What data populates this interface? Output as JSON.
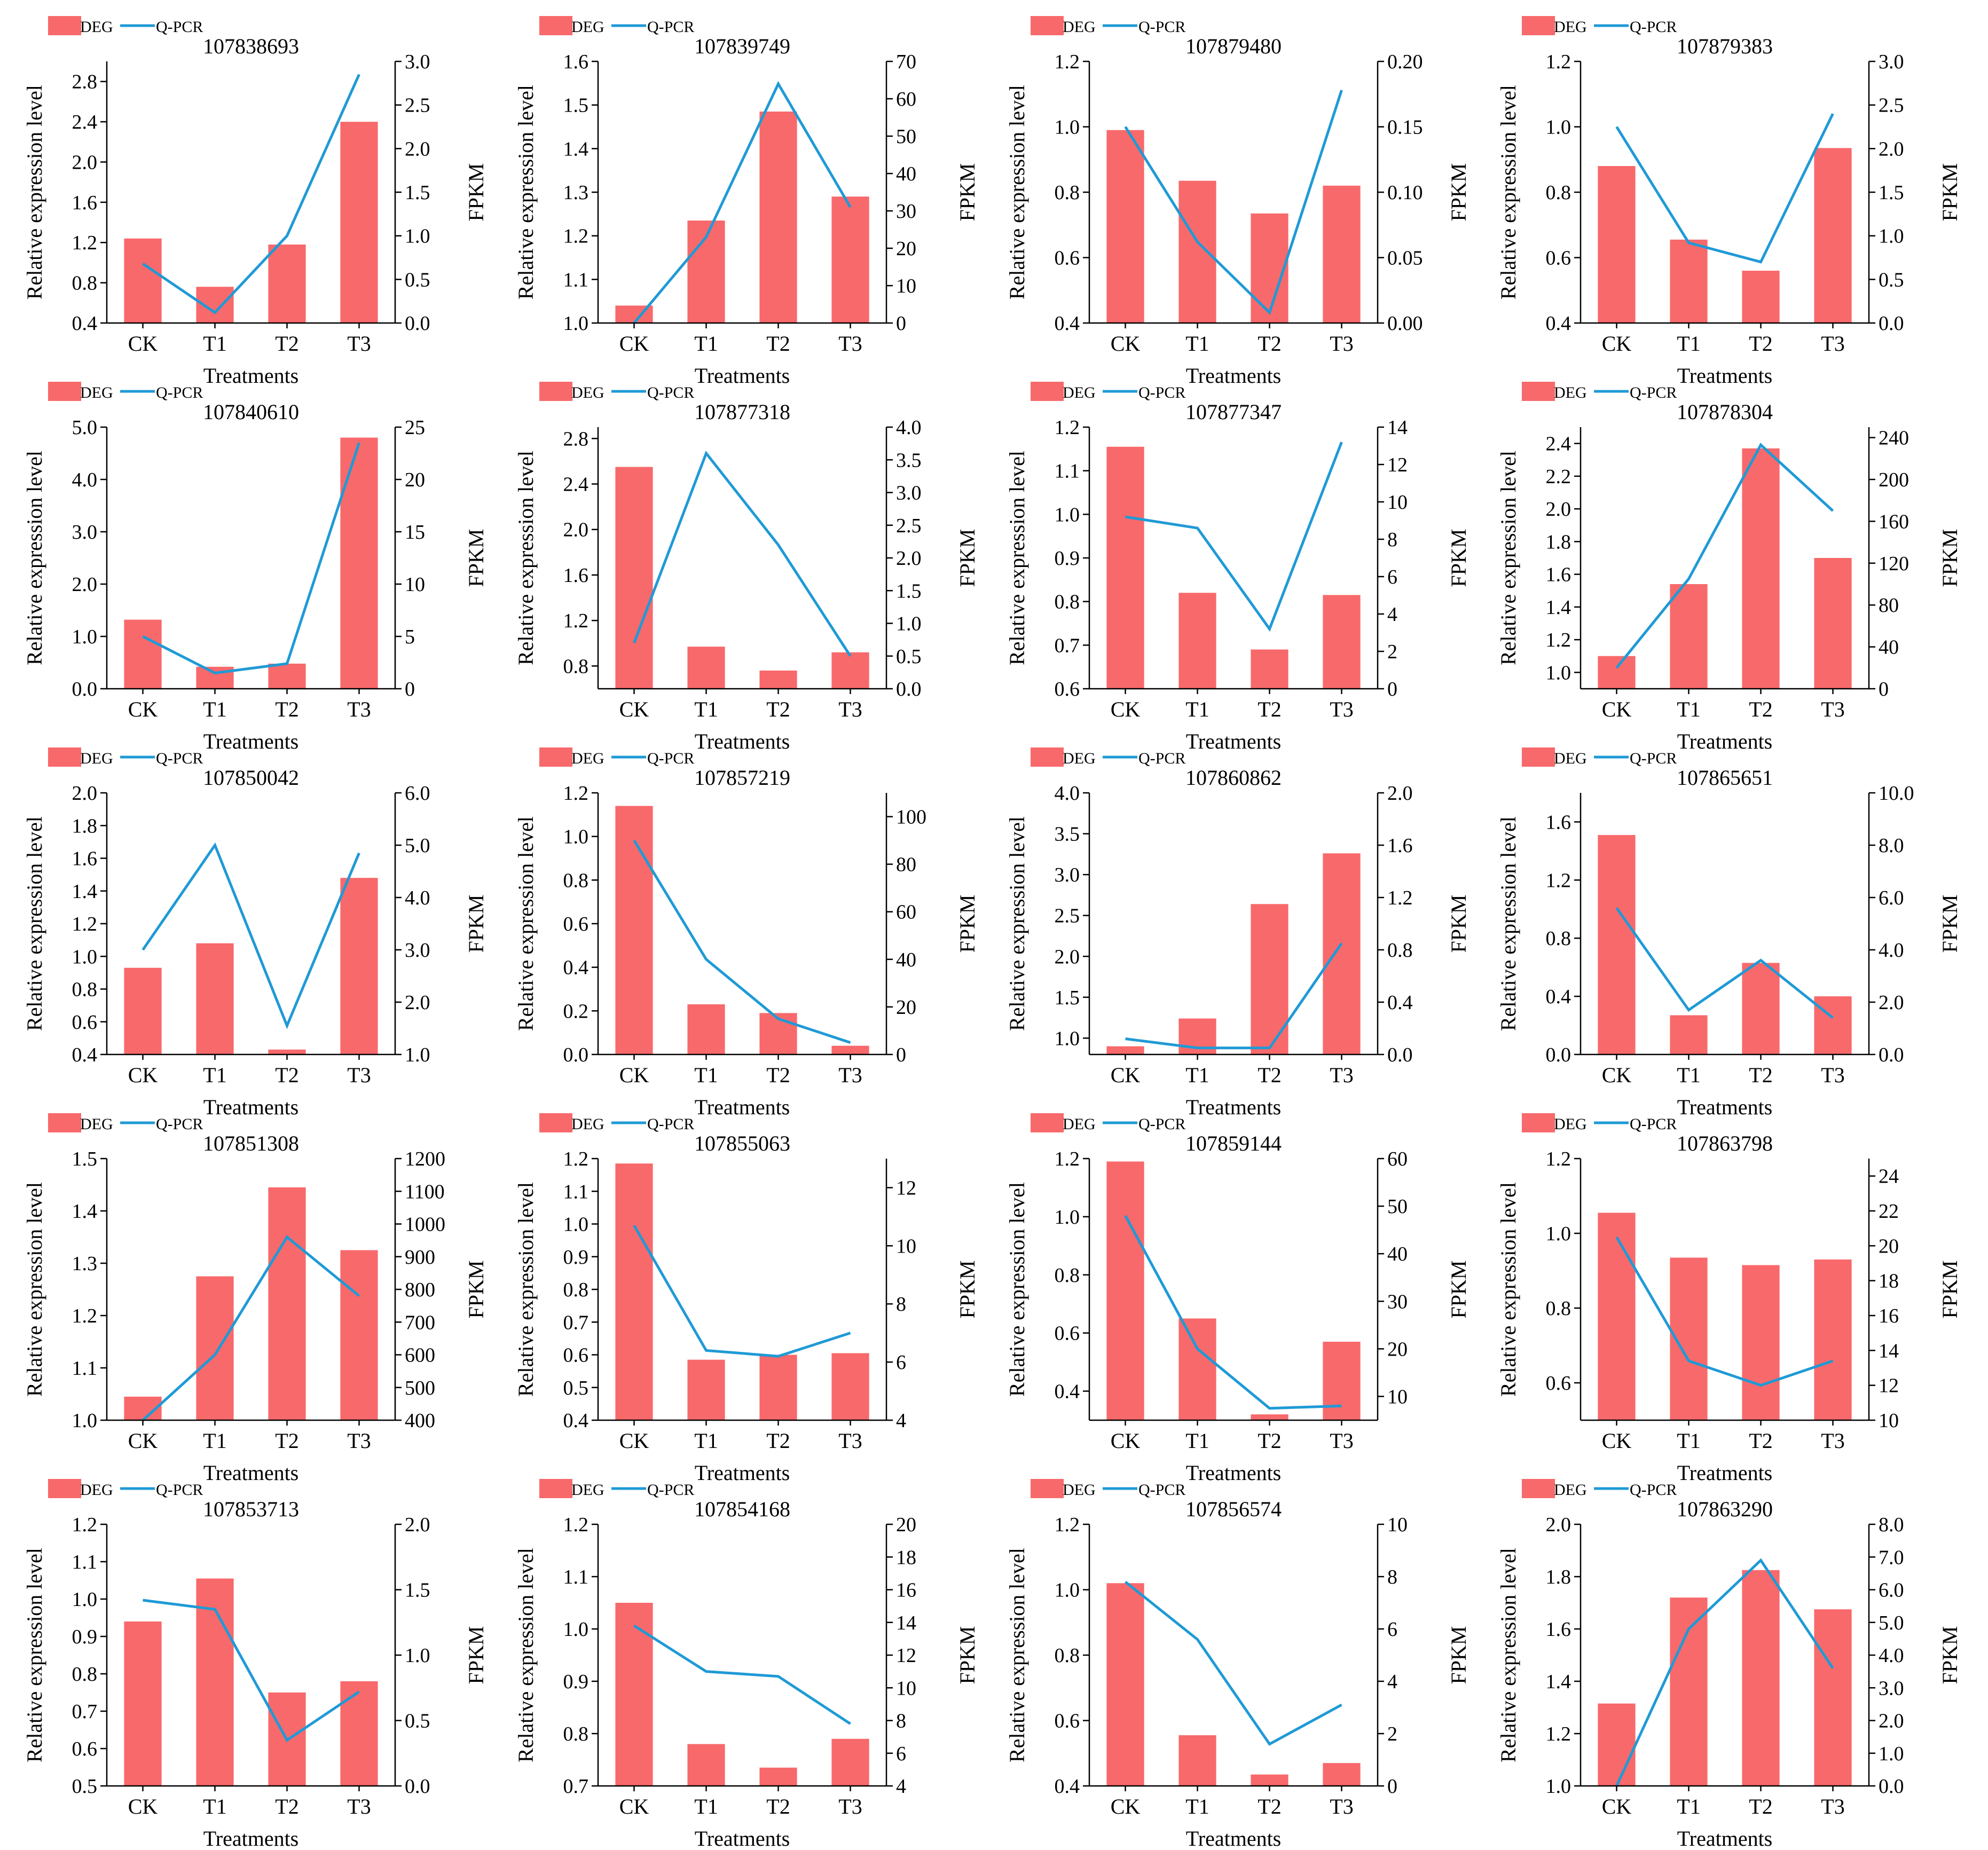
{
  "colors": {
    "bar": "#f8696b",
    "line": "#1f9ad6",
    "axis": "#000000"
  },
  "chart_data": [
    {
      "type": "bar+line",
      "title": "107838693",
      "categories": [
        "CK",
        "T1",
        "T2",
        "T3"
      ],
      "series": [
        {
          "name": "DEG",
          "axis": "left",
          "values": [
            1.24,
            0.76,
            1.18,
            2.4
          ]
        },
        {
          "name": "Q-PCR",
          "axis": "right",
          "values": [
            0.68,
            0.12,
            1.0,
            2.85
          ]
        }
      ],
      "xlabel": "Treatments",
      "ylabel": "Relative expression level",
      "y2label": "FPKM",
      "ylim": [
        0.4,
        3.0
      ],
      "yticks": [
        "0.4",
        "0.8",
        "1.2",
        "1.6",
        "2.0",
        "2.4",
        "2.8"
      ],
      "y2lim": [
        0,
        3
      ],
      "y2ticks": [
        "0.0",
        "0.5",
        "1.0",
        "1.5",
        "2.0",
        "2.5",
        "3.0"
      ]
    },
    {
      "type": "bar+line",
      "title": "107839749",
      "categories": [
        "CK",
        "T1",
        "T2",
        "T3"
      ],
      "series": [
        {
          "name": "DEG",
          "axis": "left",
          "values": [
            1.04,
            1.235,
            1.485,
            1.29
          ]
        },
        {
          "name": "Q-PCR",
          "axis": "right",
          "values": [
            0,
            23,
            64,
            31
          ]
        }
      ],
      "xlabel": "Treatments",
      "ylabel": "Relative expression level",
      "y2label": "FPKM",
      "ylim": [
        1.0,
        1.6
      ],
      "yticks": [
        "1.0",
        "1.1",
        "1.2",
        "1.3",
        "1.4",
        "1.5",
        "1.6"
      ],
      "y2lim": [
        0,
        70
      ],
      "y2ticks": [
        "0",
        "10",
        "20",
        "30",
        "40",
        "50",
        "60",
        "70"
      ]
    },
    {
      "type": "bar+line",
      "title": "107879480",
      "categories": [
        "CK",
        "T1",
        "T2",
        "T3"
      ],
      "series": [
        {
          "name": "DEG",
          "axis": "left",
          "values": [
            0.99,
            0.835,
            0.735,
            0.82
          ]
        },
        {
          "name": "Q-PCR",
          "axis": "right",
          "values": [
            0.15,
            0.062,
            0.008,
            0.178
          ]
        }
      ],
      "xlabel": "Treatments",
      "ylabel": "Relative expression level",
      "y2label": "FPKM",
      "ylim": [
        0.4,
        1.2
      ],
      "yticks": [
        "0.4",
        "0.6",
        "0.8",
        "1.0",
        "1.2"
      ],
      "y2lim": [
        0,
        0.2
      ],
      "y2ticks": [
        "0.00",
        "0.05",
        "0.10",
        "0.15",
        "0.20"
      ]
    },
    {
      "type": "bar+line",
      "title": "107879383",
      "categories": [
        "CK",
        "T1",
        "T2",
        "T3"
      ],
      "series": [
        {
          "name": "DEG",
          "axis": "left",
          "values": [
            0.88,
            0.655,
            0.56,
            0.935
          ]
        },
        {
          "name": "Q-PCR",
          "axis": "right",
          "values": [
            2.25,
            0.92,
            0.7,
            2.4
          ]
        }
      ],
      "xlabel": "Treatments",
      "ylabel": "Relative expression level",
      "y2label": "FPKM",
      "ylim": [
        0.4,
        1.2
      ],
      "yticks": [
        "0.4",
        "0.6",
        "0.8",
        "1.0",
        "1.2"
      ],
      "y2lim": [
        0,
        3
      ],
      "y2ticks": [
        "0.0",
        "0.5",
        "1.0",
        "1.5",
        "2.0",
        "2.5",
        "3.0"
      ]
    },
    {
      "type": "bar+line",
      "title": "107840610",
      "categories": [
        "CK",
        "T1",
        "T2",
        "T3"
      ],
      "series": [
        {
          "name": "DEG",
          "axis": "left",
          "values": [
            1.32,
            0.42,
            0.48,
            4.8
          ]
        },
        {
          "name": "Q-PCR",
          "axis": "right",
          "values": [
            5,
            1.5,
            2.4,
            23.5
          ]
        }
      ],
      "xlabel": "Treatments",
      "ylabel": "Relative expression level",
      "y2label": "FPKM",
      "ylim": [
        0,
        5
      ],
      "yticks": [
        "0.0",
        "1.0",
        "2.0",
        "3.0",
        "4.0",
        "5.0"
      ],
      "y2lim": [
        0,
        25
      ],
      "y2ticks": [
        "0",
        "5",
        "10",
        "15",
        "20",
        "25"
      ]
    },
    {
      "type": "bar+line",
      "title": "107877318",
      "categories": [
        "CK",
        "T1",
        "T2",
        "T3"
      ],
      "series": [
        {
          "name": "DEG",
          "axis": "left",
          "values": [
            2.55,
            0.97,
            0.76,
            0.92
          ]
        },
        {
          "name": "Q-PCR",
          "axis": "right",
          "values": [
            0.7,
            3.6,
            2.2,
            0.5
          ]
        }
      ],
      "xlabel": "Treatments",
      "ylabel": "Relative expression level",
      "y2label": "FPKM",
      "ylim": [
        0.6,
        2.9
      ],
      "yticks": [
        "0.8",
        "1.2",
        "1.6",
        "2.0",
        "2.4",
        "2.8"
      ],
      "y2lim": [
        0,
        4
      ],
      "y2ticks": [
        "0.0",
        "0.5",
        "1.0",
        "1.5",
        "2.0",
        "2.5",
        "3.0",
        "3.5",
        "4.0"
      ]
    },
    {
      "type": "bar+line",
      "title": "107877347",
      "categories": [
        "CK",
        "T1",
        "T2",
        "T3"
      ],
      "series": [
        {
          "name": "DEG",
          "axis": "left",
          "values": [
            1.155,
            0.82,
            0.69,
            0.815
          ]
        },
        {
          "name": "Q-PCR",
          "axis": "right",
          "values": [
            9.2,
            8.6,
            3.2,
            13.2
          ]
        }
      ],
      "xlabel": "Treatments",
      "ylabel": "Relative expression level",
      "y2label": "FPKM",
      "ylim": [
        0.6,
        1.2
      ],
      "yticks": [
        "0.6",
        "0.7",
        "0.8",
        "0.9",
        "1.0",
        "1.1",
        "1.2"
      ],
      "y2lim": [
        0,
        14
      ],
      "y2ticks": [
        "0",
        "2",
        "4",
        "6",
        "8",
        "10",
        "12",
        "14"
      ]
    },
    {
      "type": "bar+line",
      "title": "107878304",
      "categories": [
        "CK",
        "T1",
        "T2",
        "T3"
      ],
      "series": [
        {
          "name": "DEG",
          "axis": "left",
          "values": [
            1.1,
            1.54,
            2.37,
            1.7
          ]
        },
        {
          "name": "Q-PCR",
          "axis": "right",
          "values": [
            20,
            105,
            233,
            170
          ]
        }
      ],
      "xlabel": "Treatments",
      "ylabel": "Relative expression level",
      "y2label": "FPKM",
      "ylim": [
        0.9,
        2.5
      ],
      "yticks": [
        "1.0",
        "1.2",
        "1.4",
        "1.6",
        "1.8",
        "2.0",
        "2.2",
        "2.4"
      ],
      "y2lim": [
        0,
        250
      ],
      "y2ticks": [
        "0",
        "40",
        "80",
        "120",
        "160",
        "200",
        "240"
      ]
    },
    {
      "type": "bar+line",
      "title": "107850042",
      "categories": [
        "CK",
        "T1",
        "T2",
        "T3"
      ],
      "series": [
        {
          "name": "DEG",
          "axis": "left",
          "values": [
            0.93,
            1.08,
            0.43,
            1.48
          ]
        },
        {
          "name": "Q-PCR",
          "axis": "right",
          "values": [
            3.0,
            5.0,
            1.55,
            4.85
          ]
        }
      ],
      "xlabel": "Treatments",
      "ylabel": "Relative expression level",
      "y2label": "FPKM",
      "ylim": [
        0.4,
        2.0
      ],
      "yticks": [
        "0.4",
        "0.6",
        "0.8",
        "1.0",
        "1.2",
        "1.4",
        "1.6",
        "1.8",
        "2.0"
      ],
      "y2lim": [
        1,
        6
      ],
      "y2ticks": [
        "1.0",
        "2.0",
        "3.0",
        "4.0",
        "5.0",
        "6.0"
      ]
    },
    {
      "type": "bar+line",
      "title": "107857219",
      "categories": [
        "CK",
        "T1",
        "T2",
        "T3"
      ],
      "series": [
        {
          "name": "DEG",
          "axis": "left",
          "values": [
            1.14,
            0.23,
            0.19,
            0.04
          ]
        },
        {
          "name": "Q-PCR",
          "axis": "right",
          "values": [
            90,
            40,
            15,
            5
          ]
        }
      ],
      "xlabel": "Treatments",
      "ylabel": "Relative expression level",
      "y2label": "FPKM",
      "ylim": [
        0,
        1.2
      ],
      "yticks": [
        "0.0",
        "0.2",
        "0.4",
        "0.6",
        "0.8",
        "1.0",
        "1.2"
      ],
      "y2lim": [
        0,
        110
      ],
      "y2ticks": [
        "0",
        "20",
        "40",
        "60",
        "80",
        "100"
      ]
    },
    {
      "type": "bar+line",
      "title": "107860862",
      "categories": [
        "CK",
        "T1",
        "T2",
        "T3"
      ],
      "series": [
        {
          "name": "DEG",
          "axis": "left",
          "values": [
            0.9,
            1.24,
            2.64,
            3.26
          ]
        },
        {
          "name": "Q-PCR",
          "axis": "right",
          "values": [
            0.12,
            0.05,
            0.05,
            0.85
          ]
        }
      ],
      "xlabel": "Treatments",
      "ylabel": "Relative expression level",
      "y2label": "FPKM",
      "ylim": [
        0.8,
        4.0
      ],
      "yticks": [
        "1.0",
        "1.5",
        "2.0",
        "2.5",
        "3.0",
        "3.5",
        "4.0"
      ],
      "y2lim": [
        0,
        2
      ],
      "y2ticks": [
        "0.0",
        "0.4",
        "0.8",
        "1.2",
        "1.6",
        "2.0"
      ]
    },
    {
      "type": "bar+line",
      "title": "107865651",
      "categories": [
        "CK",
        "T1",
        "T2",
        "T3"
      ],
      "series": [
        {
          "name": "DEG",
          "axis": "left",
          "values": [
            1.51,
            0.27,
            0.63,
            0.4
          ]
        },
        {
          "name": "Q-PCR",
          "axis": "right",
          "values": [
            5.6,
            1.7,
            3.6,
            1.4
          ]
        }
      ],
      "xlabel": "Treatments",
      "ylabel": "Relative expression level",
      "y2label": "FPKM",
      "ylim": [
        0,
        1.8
      ],
      "yticks": [
        "0.0",
        "0.4",
        "0.8",
        "1.2",
        "1.6"
      ],
      "y2lim": [
        0,
        10
      ],
      "y2ticks": [
        "0.0",
        "2.0",
        "4.0",
        "6.0",
        "8.0",
        "10.0"
      ]
    },
    {
      "type": "bar+line",
      "title": "107851308",
      "categories": [
        "CK",
        "T1",
        "T2",
        "T3"
      ],
      "series": [
        {
          "name": "DEG",
          "axis": "left",
          "values": [
            1.045,
            1.275,
            1.445,
            1.325
          ]
        },
        {
          "name": "Q-PCR",
          "axis": "right",
          "values": [
            400,
            600,
            960,
            780
          ]
        }
      ],
      "xlabel": "Treatments",
      "ylabel": "Relative expression level",
      "y2label": "FPKM",
      "ylim": [
        1.0,
        1.5
      ],
      "yticks": [
        "1.0",
        "1.1",
        "1.2",
        "1.3",
        "1.4",
        "1.5"
      ],
      "y2lim": [
        400,
        1200
      ],
      "y2ticks": [
        "400",
        "500",
        "600",
        "700",
        "800",
        "900",
        "1000",
        "1100",
        "1200"
      ]
    },
    {
      "type": "bar+line",
      "title": "107855063",
      "categories": [
        "CK",
        "T1",
        "T2",
        "T3"
      ],
      "series": [
        {
          "name": "DEG",
          "axis": "left",
          "values": [
            1.185,
            0.585,
            0.6,
            0.605
          ]
        },
        {
          "name": "Q-PCR",
          "axis": "right",
          "values": [
            10.7,
            6.4,
            6.2,
            7.0
          ]
        }
      ],
      "xlabel": "Treatments",
      "ylabel": "Relative expression level",
      "y2label": "FPKM",
      "ylim": [
        0.4,
        1.2
      ],
      "yticks": [
        "0.4",
        "0.5",
        "0.6",
        "0.7",
        "0.8",
        "0.9",
        "1.0",
        "1.1",
        "1.2"
      ],
      "y2lim": [
        4,
        13
      ],
      "y2ticks": [
        "4",
        "6",
        "8",
        "10",
        "12"
      ]
    },
    {
      "type": "bar+line",
      "title": "107859144",
      "categories": [
        "CK",
        "T1",
        "T2",
        "T3"
      ],
      "series": [
        {
          "name": "DEG",
          "axis": "left",
          "values": [
            1.19,
            0.65,
            0.32,
            0.57
          ]
        },
        {
          "name": "Q-PCR",
          "axis": "right",
          "values": [
            48,
            20,
            7.5,
            8
          ]
        }
      ],
      "xlabel": "Treatments",
      "ylabel": "Relative expression level",
      "y2label": "FPKM",
      "ylim": [
        0.3,
        1.2
      ],
      "yticks": [
        "0.4",
        "0.6",
        "0.8",
        "1.0",
        "1.2"
      ],
      "y2lim": [
        5,
        60
      ],
      "y2ticks": [
        "10",
        "20",
        "30",
        "40",
        "50",
        "60"
      ]
    },
    {
      "type": "bar+line",
      "title": "107863798",
      "categories": [
        "CK",
        "T1",
        "T2",
        "T3"
      ],
      "series": [
        {
          "name": "DEG",
          "axis": "left",
          "values": [
            1.055,
            0.935,
            0.915,
            0.93
          ]
        },
        {
          "name": "Q-PCR",
          "axis": "right",
          "values": [
            20.5,
            13.4,
            12.0,
            13.4
          ]
        }
      ],
      "xlabel": "Treatments",
      "ylabel": "Relative expression level",
      "y2label": "FPKM",
      "ylim": [
        0.5,
        1.2
      ],
      "yticks": [
        "0.6",
        "0.8",
        "1.0",
        "1.2"
      ],
      "y2lim": [
        10,
        25
      ],
      "y2ticks": [
        "10",
        "12",
        "14",
        "16",
        "18",
        "20",
        "22",
        "24"
      ]
    },
    {
      "type": "bar+line",
      "title": "107853713",
      "categories": [
        "CK",
        "T1",
        "T2",
        "T3"
      ],
      "series": [
        {
          "name": "DEG",
          "axis": "left",
          "values": [
            0.94,
            1.055,
            0.75,
            0.78
          ]
        },
        {
          "name": "Q-PCR",
          "axis": "right",
          "values": [
            1.42,
            1.35,
            0.35,
            0.72
          ]
        }
      ],
      "xlabel": "Treatments",
      "ylabel": "Relative expression level",
      "y2label": "FPKM",
      "ylim": [
        0.5,
        1.2
      ],
      "yticks": [
        "0.5",
        "0.6",
        "0.7",
        "0.8",
        "0.9",
        "1.0",
        "1.1",
        "1.2"
      ],
      "y2lim": [
        0,
        2
      ],
      "y2ticks": [
        "0.0",
        "0.5",
        "1.0",
        "1.5",
        "2.0"
      ]
    },
    {
      "type": "bar+line",
      "title": "107854168",
      "categories": [
        "CK",
        "T1",
        "T2",
        "T3"
      ],
      "series": [
        {
          "name": "DEG",
          "axis": "left",
          "values": [
            1.05,
            0.78,
            0.735,
            0.79
          ]
        },
        {
          "name": "Q-PCR",
          "axis": "right",
          "values": [
            13.8,
            11.0,
            10.7,
            7.8
          ]
        }
      ],
      "xlabel": "Treatments",
      "ylabel": "Relative expression level",
      "y2label": "FPKM",
      "ylim": [
        0.7,
        1.2
      ],
      "yticks": [
        "0.7",
        "0.8",
        "0.9",
        "1.0",
        "1.1",
        "1.2"
      ],
      "y2lim": [
        4,
        20
      ],
      "y2ticks": [
        "4",
        "6",
        "8",
        "10",
        "12",
        "14",
        "16",
        "18",
        "20"
      ]
    },
    {
      "type": "bar+line",
      "title": "107856574",
      "categories": [
        "CK",
        "T1",
        "T2",
        "T3"
      ],
      "series": [
        {
          "name": "DEG",
          "axis": "left",
          "values": [
            1.02,
            0.555,
            0.435,
            0.47
          ]
        },
        {
          "name": "Q-PCR",
          "axis": "right",
          "values": [
            7.8,
            5.6,
            1.6,
            3.1
          ]
        }
      ],
      "xlabel": "Treatments",
      "ylabel": "Relative expression level",
      "y2label": "FPKM",
      "ylim": [
        0.4,
        1.2
      ],
      "yticks": [
        "0.4",
        "0.6",
        "0.8",
        "1.0",
        "1.2"
      ],
      "y2lim": [
        0,
        10
      ],
      "y2ticks": [
        "0",
        "2",
        "4",
        "6",
        "8",
        "10"
      ]
    },
    {
      "type": "bar+line",
      "title": "107863290",
      "categories": [
        "CK",
        "T1",
        "T2",
        "T3"
      ],
      "series": [
        {
          "name": "DEG",
          "axis": "left",
          "values": [
            1.315,
            1.72,
            1.825,
            1.675
          ]
        },
        {
          "name": "Q-PCR",
          "axis": "right",
          "values": [
            0,
            4.8,
            6.9,
            3.6
          ]
        }
      ],
      "xlabel": "Treatments",
      "ylabel": "Relative expression level",
      "y2label": "FPKM",
      "ylim": [
        1.0,
        2.0
      ],
      "yticks": [
        "1.0",
        "1.2",
        "1.4",
        "1.6",
        "1.8",
        "2.0"
      ],
      "y2lim": [
        0,
        8
      ],
      "y2ticks": [
        "0.0",
        "1.0",
        "2.0",
        "3.0",
        "4.0",
        "5.0",
        "6.0",
        "7.0",
        "8.0"
      ]
    }
  ]
}
